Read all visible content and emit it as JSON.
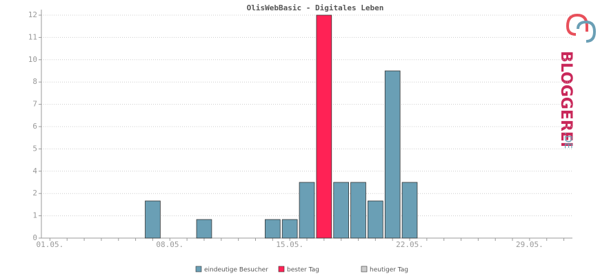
{
  "chart_data": {
    "type": "bar",
    "title": "OlisWebBasic - Digitales Leben",
    "categories": [
      "01.05.",
      null,
      null,
      null,
      null,
      null,
      null,
      "08.05.",
      null,
      null,
      null,
      null,
      null,
      null,
      "15.05.",
      null,
      null,
      null,
      null,
      null,
      null,
      "22.05.",
      null,
      null,
      null,
      null,
      null,
      null,
      "29.05.",
      null,
      null
    ],
    "series": [
      {
        "name": "eindeutige Besucher",
        "color": "#6a9fb5",
        "values": [
          0,
          0,
          0,
          0,
          0,
          0,
          2,
          0,
          0,
          1,
          0,
          0,
          0,
          1,
          1,
          3,
          null,
          3,
          3,
          2,
          9,
          3,
          0,
          0,
          0,
          0,
          0,
          0,
          0,
          0,
          0
        ]
      },
      {
        "name": "bester Tag",
        "color": "#ff2255",
        "values": [
          null,
          null,
          null,
          null,
          null,
          null,
          null,
          null,
          null,
          null,
          null,
          null,
          null,
          null,
          null,
          null,
          12,
          null,
          null,
          null,
          null,
          null,
          null,
          null,
          null,
          null,
          null,
          null,
          null,
          null,
          null
        ]
      },
      {
        "name": "heutiger Tag",
        "color": "#cccccc",
        "values": [
          null,
          null,
          null,
          null,
          null,
          null,
          null,
          null,
          null,
          null,
          null,
          null,
          null,
          null,
          null,
          null,
          null,
          null,
          null,
          null,
          null,
          null,
          null,
          null,
          null,
          null,
          null,
          null,
          null,
          null,
          null
        ]
      }
    ],
    "ylim": [
      0,
      12
    ],
    "yticks": [
      0,
      {
        "value": 1.2,
        "label": "1"
      },
      {
        "value": 2.4,
        "label": "2"
      },
      {
        "value": 3.6,
        "label": "4"
      },
      {
        "value": 4.8,
        "label": "5"
      },
      6,
      {
        "value": 7.2,
        "label": "7"
      },
      {
        "value": 8.4,
        "label": "8"
      },
      {
        "value": 9.6,
        "label": "10"
      },
      {
        "value": 10.8,
        "label": "11"
      },
      12
    ],
    "grid": true,
    "logo": {
      "main": "BLOGGEREI",
      "suffix": ".DE"
    }
  }
}
